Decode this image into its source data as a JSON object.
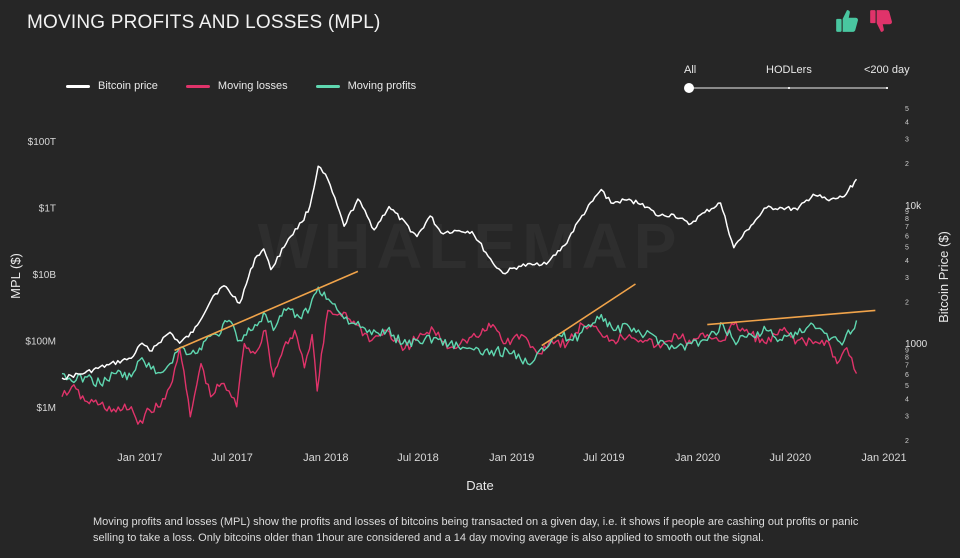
{
  "title": "MOVING PROFITS AND LOSSES (MPL)",
  "votes": {
    "up_icon": "thumbs-up-icon",
    "down_icon": "thumbs-down-icon",
    "up_color": "#49c6a0",
    "down_color": "#e0336a"
  },
  "legend": [
    {
      "label": "Bitcoin price",
      "color": "#ffffff"
    },
    {
      "label": "Moving losses",
      "color": "#e0336a"
    },
    {
      "label": "Moving profits",
      "color": "#5fd7b0"
    }
  ],
  "filter": {
    "options": [
      "All",
      "HODLers",
      "<200 day"
    ],
    "selected": "All"
  },
  "caption": "Moving profits and losses (MPL) show the profits and losses of bitcoins being transacted on a given day, i.e. it shows if people are cashing out profits or panic selling to take a loss. Only bitcoins older than 1hour are considered and a 14 day moving average is also applied to smooth out the signal.",
  "watermark": "WHALEMAP",
  "chart_data": {
    "type": "line",
    "xlabel": "Date",
    "ylabel_left": "MPL ($)",
    "ylabel_right": "Bitcoin Price ($)",
    "x_ticks": [
      "Jan 2017",
      "Jul 2017",
      "Jan 2018",
      "Jul 2018",
      "Jan 2019",
      "Jul 2019",
      "Jan 2020",
      "Jul 2020",
      "Jan 2021"
    ],
    "x_range": [
      "2016-08-01",
      "2021-01-01"
    ],
    "left_axis": {
      "scale": "log",
      "ylim": [
        100000,
        1000000000000000
      ],
      "tick_values": [
        1000000,
        100000000,
        10000000000,
        1000000000000,
        100000000000000
      ],
      "tick_labels": [
        "$1M",
        "$100M",
        "$10B",
        "$1T",
        "$100T"
      ]
    },
    "right_axis": {
      "scale": "log",
      "ylim": [
        200,
        50000
      ],
      "major": [
        {
          "value": 1000,
          "label": "1000"
        },
        {
          "value": 10000,
          "label": "10k"
        }
      ],
      "minor_digits": [
        2,
        3,
        4,
        5,
        6,
        7,
        8,
        9
      ]
    },
    "series": [
      {
        "name": "Bitcoin price",
        "color": "#ffffff",
        "axis": "right",
        "dates": [
          "2016-08-01",
          "2016-09-15",
          "2016-11-01",
          "2016-12-15",
          "2017-01-05",
          "2017-01-20",
          "2017-03-01",
          "2017-03-20",
          "2017-04-15",
          "2017-05-25",
          "2017-06-15",
          "2017-07-16",
          "2017-08-15",
          "2017-09-01",
          "2017-09-15",
          "2017-10-20",
          "2017-11-15",
          "2017-12-01",
          "2017-12-17",
          "2018-01-05",
          "2018-02-06",
          "2018-03-05",
          "2018-04-06",
          "2018-05-05",
          "2018-06-29",
          "2018-07-25",
          "2018-08-15",
          "2018-09-15",
          "2018-10-15",
          "2018-11-25",
          "2018-12-15",
          "2019-01-15",
          "2019-02-15",
          "2019-03-15",
          "2019-04-15",
          "2019-05-15",
          "2019-06-26",
          "2019-07-15",
          "2019-08-15",
          "2019-09-15",
          "2019-10-15",
          "2019-11-15",
          "2019-12-15",
          "2020-01-15",
          "2020-02-15",
          "2020-03-12",
          "2020-04-15",
          "2020-05-15",
          "2020-06-15",
          "2020-07-15",
          "2020-08-15",
          "2020-09-15",
          "2020-10-15",
          "2020-11-08"
        ],
        "values": [
          560,
          610,
          700,
          780,
          1000,
          880,
          1200,
          1000,
          1200,
          2200,
          2600,
          1950,
          4100,
          4800,
          3400,
          5700,
          7500,
          9800,
          19000,
          15200,
          7000,
          11000,
          6600,
          9700,
          5900,
          8300,
          6300,
          6500,
          6400,
          3800,
          3200,
          3600,
          3700,
          3900,
          5100,
          7900,
          12900,
          10300,
          10800,
          10200,
          8300,
          8500,
          7200,
          8800,
          10300,
          4900,
          7100,
          9500,
          9500,
          9200,
          11900,
          10700,
          11500,
          15300
        ]
      },
      {
        "name": "Moving losses",
        "color": "#e0336a",
        "axis": "left",
        "dates": [
          "2016-08-01",
          "2016-08-20",
          "2016-09-15",
          "2016-10-15",
          "2016-11-15",
          "2016-12-15",
          "2016-12-28",
          "2017-01-20",
          "2017-02-10",
          "2017-03-01",
          "2017-03-20",
          "2017-04-10",
          "2017-05-01",
          "2017-05-20",
          "2017-06-10",
          "2017-06-25",
          "2017-07-10",
          "2017-07-25",
          "2017-08-15",
          "2017-09-05",
          "2017-09-20",
          "2017-10-10",
          "2017-11-01",
          "2017-11-20",
          "2017-12-05",
          "2017-12-15",
          "2018-01-05",
          "2018-01-20",
          "2018-02-05",
          "2018-03-01",
          "2018-04-01",
          "2018-05-01",
          "2018-06-01",
          "2018-07-01",
          "2018-08-01",
          "2018-09-01",
          "2018-10-01",
          "2018-11-01",
          "2018-11-25",
          "2018-12-20",
          "2019-01-20",
          "2019-02-20",
          "2019-03-20",
          "2019-04-20",
          "2019-05-20",
          "2019-06-20",
          "2019-07-20",
          "2019-08-20",
          "2019-09-20",
          "2019-10-20",
          "2019-11-20",
          "2019-12-20",
          "2020-01-20",
          "2020-02-20",
          "2020-03-12",
          "2020-04-15",
          "2020-05-15",
          "2020-06-15",
          "2020-07-15",
          "2020-08-15",
          "2020-09-10",
          "2020-10-01",
          "2020-10-20",
          "2020-11-08"
        ],
        "values": [
          2000000,
          4000000,
          1500000,
          1200000,
          700000,
          1000000,
          300000,
          800000,
          1000000,
          4000000,
          60000000,
          500000,
          20000000,
          2000000,
          5000000,
          3000000,
          1000000,
          80000000,
          40000000,
          200000000,
          8000000,
          60000000,
          200000000,
          15000000,
          150000000,
          3000000,
          800000000,
          600000000,
          700000000,
          300000000,
          100000000,
          200000000,
          50000000,
          120000000,
          200000000,
          60000000,
          100000000,
          150000000,
          300000000,
          80000000,
          150000000,
          40000000,
          100000000,
          80000000,
          300000000,
          200000000,
          100000000,
          150000000,
          100000000,
          60000000,
          150000000,
          80000000,
          150000000,
          100000000,
          300000000,
          150000000,
          80000000,
          200000000,
          100000000,
          80000000,
          100000000,
          20000000,
          60000000,
          10000000
        ]
      },
      {
        "name": "Moving profits",
        "color": "#5fd7b0",
        "axis": "left",
        "dates": [
          "2016-08-01",
          "2016-08-20",
          "2016-09-15",
          "2016-10-15",
          "2016-11-15",
          "2016-12-15",
          "2017-01-05",
          "2017-02-01",
          "2017-03-01",
          "2017-03-20",
          "2017-04-20",
          "2017-05-10",
          "2017-06-01",
          "2017-06-25",
          "2017-07-16",
          "2017-08-15",
          "2017-09-05",
          "2017-09-20",
          "2017-10-15",
          "2017-11-10",
          "2017-12-01",
          "2017-12-17",
          "2018-01-10",
          "2018-02-01",
          "2018-03-01",
          "2018-04-01",
          "2018-05-01",
          "2018-06-01",
          "2018-07-01",
          "2018-08-01",
          "2018-09-01",
          "2018-10-01",
          "2018-11-01",
          "2018-12-01",
          "2019-01-01",
          "2019-02-01",
          "2019-03-01",
          "2019-04-01",
          "2019-05-01",
          "2019-06-01",
          "2019-06-26",
          "2019-07-20",
          "2019-08-20",
          "2019-09-20",
          "2019-10-20",
          "2019-11-20",
          "2019-12-20",
          "2020-01-20",
          "2020-02-20",
          "2020-03-12",
          "2020-04-15",
          "2020-05-15",
          "2020-06-15",
          "2020-07-15",
          "2020-08-15",
          "2020-09-15",
          "2020-10-15",
          "2020-11-08"
        ],
        "values": [
          10000000,
          6000000,
          8000000,
          5000000,
          10000000,
          8000000,
          30000000,
          10000000,
          20000000,
          60000000,
          40000000,
          100000000,
          150000000,
          400000000,
          100000000,
          300000000,
          600000000,
          200000000,
          800000000,
          500000000,
          1000000000,
          4000000000,
          1500000000,
          600000000,
          300000000,
          150000000,
          200000000,
          80000000,
          100000000,
          120000000,
          80000000,
          60000000,
          40000000,
          50000000,
          40000000,
          20000000,
          60000000,
          150000000,
          100000000,
          300000000,
          600000000,
          200000000,
          250000000,
          150000000,
          100000000,
          60000000,
          80000000,
          100000000,
          300000000,
          100000000,
          150000000,
          200000000,
          100000000,
          150000000,
          300000000,
          100000000,
          100000000,
          400000000
        ]
      }
    ],
    "trendlines": [
      {
        "color": "#f0a34a",
        "from": [
          "2017-03-10",
          50000000
        ],
        "to": [
          "2018-03-05",
          12000000000
        ]
      },
      {
        "color": "#f0a34a",
        "from": [
          "2019-03-01",
          70000000
        ],
        "to": [
          "2019-09-01",
          5000000000
        ]
      },
      {
        "color": "#f0a34a",
        "from": [
          "2020-01-20",
          300000000
        ],
        "to": [
          "2020-12-15",
          800000000
        ]
      }
    ]
  }
}
